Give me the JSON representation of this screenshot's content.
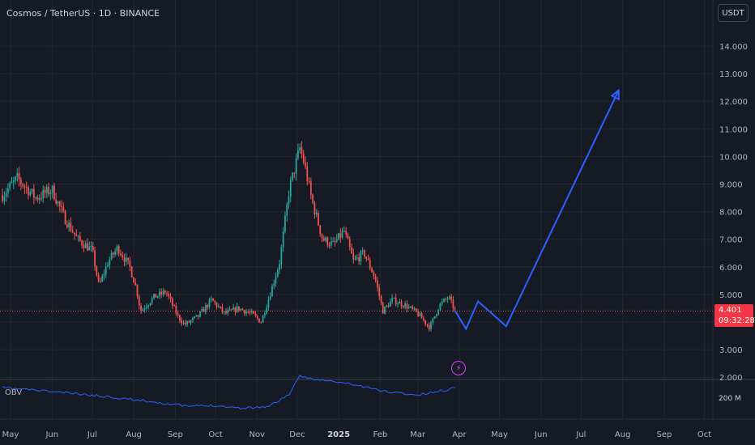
{
  "header": {
    "symbol": "Cosmos / TetherUS · 1D · BINANCE",
    "currency_button": "USDT"
  },
  "indicator": {
    "name": "OBV",
    "axis_value": "200 M",
    "color": "#2962ff"
  },
  "last_price": {
    "value": "4.401",
    "countdown": "09:32:28",
    "color": "#f23645"
  },
  "icons": {
    "alert_icon": "lightning-bolt-icon"
  },
  "colors": {
    "background": "#161a25",
    "up_candle": "#26a69a",
    "down_candle": "#ef5350",
    "projection": "#2962ff",
    "alert": "#e040fb"
  },
  "chart_data": {
    "type": "candlestick",
    "symbol": "ATOMUSDT",
    "timeframe": "1D",
    "exchange": "BINANCE",
    "y_ticks": [
      "14.000",
      "13.000",
      "12.000",
      "11.000",
      "10.000",
      "9.000",
      "8.000",
      "7.000",
      "6.000",
      "5.000",
      "4.000",
      "3.000",
      "2.000"
    ],
    "x_ticks": [
      "May",
      "Jun",
      "Jul",
      "Aug",
      "Sep",
      "Oct",
      "Nov",
      "Dec",
      "2025",
      "Feb",
      "Mar",
      "Apr",
      "May",
      "Jun",
      "Jul",
      "Aug",
      "Sep",
      "Oct"
    ],
    "ylim": [
      1.9,
      14.3
    ],
    "grid": true,
    "price_path": [
      {
        "date": "2024-04-25",
        "close": 8.6
      },
      {
        "date": "2024-05-06",
        "close": 9.2
      },
      {
        "date": "2024-05-20",
        "close": 8.5
      },
      {
        "date": "2024-06-01",
        "close": 8.8
      },
      {
        "date": "2024-06-10",
        "close": 7.8
      },
      {
        "date": "2024-06-20",
        "close": 7.0
      },
      {
        "date": "2024-07-01",
        "close": 6.6
      },
      {
        "date": "2024-07-06",
        "close": 5.3
      },
      {
        "date": "2024-07-13",
        "close": 6.2
      },
      {
        "date": "2024-07-20",
        "close": 6.7
      },
      {
        "date": "2024-07-29",
        "close": 6.0
      },
      {
        "date": "2024-08-03",
        "close": 5.2
      },
      {
        "date": "2024-08-06",
        "close": 4.4
      },
      {
        "date": "2024-08-16",
        "close": 4.9
      },
      {
        "date": "2024-08-25",
        "close": 5.1
      },
      {
        "date": "2024-09-03",
        "close": 4.2
      },
      {
        "date": "2024-09-08",
        "close": 3.9
      },
      {
        "date": "2024-09-18",
        "close": 4.2
      },
      {
        "date": "2024-09-28",
        "close": 4.8
      },
      {
        "date": "2024-10-08",
        "close": 4.3
      },
      {
        "date": "2024-10-18",
        "close": 4.5
      },
      {
        "date": "2024-10-28",
        "close": 4.3
      },
      {
        "date": "2024-11-04",
        "close": 4.0
      },
      {
        "date": "2024-11-10",
        "close": 4.9
      },
      {
        "date": "2024-11-18",
        "close": 6.2
      },
      {
        "date": "2024-11-25",
        "close": 8.8
      },
      {
        "date": "2024-12-03",
        "close": 10.3
      },
      {
        "date": "2024-12-06",
        "close": 9.8
      },
      {
        "date": "2024-12-12",
        "close": 8.4
      },
      {
        "date": "2024-12-20",
        "close": 7.0
      },
      {
        "date": "2024-12-28",
        "close": 6.8
      },
      {
        "date": "2025-01-05",
        "close": 7.3
      },
      {
        "date": "2025-01-12",
        "close": 6.2
      },
      {
        "date": "2025-01-20",
        "close": 6.5
      },
      {
        "date": "2025-01-28",
        "close": 5.6
      },
      {
        "date": "2025-02-03",
        "close": 4.4
      },
      {
        "date": "2025-02-10",
        "close": 4.8
      },
      {
        "date": "2025-02-20",
        "close": 4.6
      },
      {
        "date": "2025-03-01",
        "close": 4.3
      },
      {
        "date": "2025-03-10",
        "close": 3.8
      },
      {
        "date": "2025-03-17",
        "close": 4.6
      },
      {
        "date": "2025-03-24",
        "close": 4.9
      },
      {
        "date": "2025-03-29",
        "close": 4.401
      }
    ],
    "projection": [
      {
        "date": "2025-03-29",
        "value": 4.4
      },
      {
        "date": "2025-04-06",
        "value": 3.75
      },
      {
        "date": "2025-04-15",
        "value": 4.75
      },
      {
        "date": "2025-05-06",
        "value": 3.85
      },
      {
        "date": "2025-07-29",
        "value": 12.4
      }
    ],
    "last_price": 4.401,
    "obv": {
      "name": "OBV",
      "axis_tick": "200 M",
      "dates": [
        "2024-04-25",
        "2024-05-15",
        "2024-06-15",
        "2024-07-15",
        "2024-08-15",
        "2024-09-10",
        "2024-10-01",
        "2024-10-20",
        "2024-11-10",
        "2024-11-25",
        "2024-12-03",
        "2024-12-20",
        "2025-01-10",
        "2025-02-05",
        "2025-03-01",
        "2025-03-20",
        "2025-03-29"
      ],
      "values": [
        212,
        210,
        206,
        202,
        197,
        192,
        193,
        190,
        192,
        205,
        224,
        220,
        216,
        208,
        204,
        209,
        212
      ]
    }
  }
}
